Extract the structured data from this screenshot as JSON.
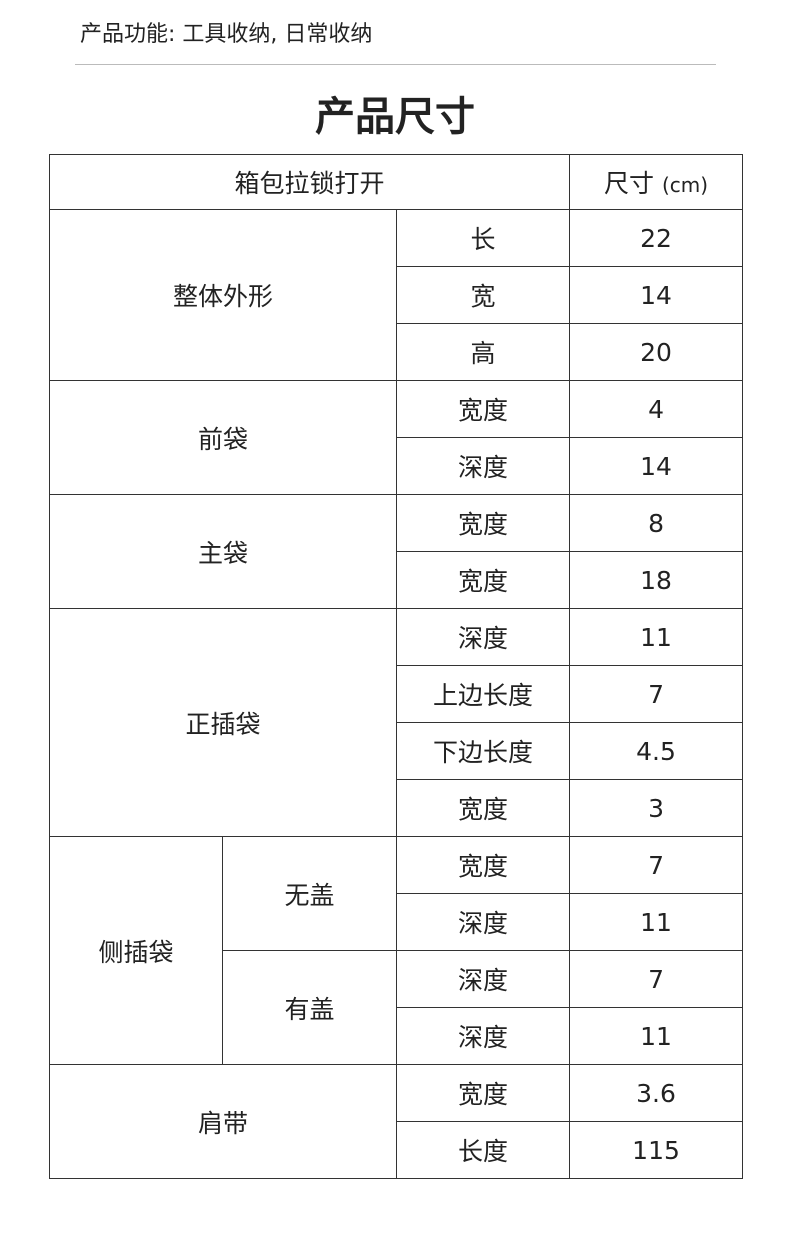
{
  "feature_text": "产品功能: 工具收纳, 日常收纳",
  "title": "产品尺寸",
  "table": {
    "header": {
      "col1": "箱包拉锁打开",
      "col2": "尺寸",
      "unit": "(cm)"
    },
    "groups": [
      {
        "name": "整体外形",
        "rows": [
          {
            "label": "长",
            "value": "22"
          },
          {
            "label": "宽",
            "value": "14"
          },
          {
            "label": "高",
            "value": "20"
          }
        ]
      },
      {
        "name": "前袋",
        "rows": [
          {
            "label": "宽度",
            "value": "4"
          },
          {
            "label": "深度",
            "value": "14"
          }
        ]
      },
      {
        "name": "主袋",
        "rows": [
          {
            "label": "宽度",
            "value": "8"
          },
          {
            "label": "宽度",
            "value": "18"
          }
        ]
      },
      {
        "name": "正插袋",
        "rows": [
          {
            "label": "深度",
            "value": "11"
          },
          {
            "label": "上边长度",
            "value": "7"
          },
          {
            "label": "下边长度",
            "value": "4.5"
          },
          {
            "label": "宽度",
            "value": "3"
          }
        ]
      },
      {
        "name": "侧插袋",
        "subgroups": [
          {
            "name": "无盖",
            "rows": [
              {
                "label": "宽度",
                "value": "7"
              },
              {
                "label": "深度",
                "value": "11"
              }
            ]
          },
          {
            "name": "有盖",
            "rows": [
              {
                "label": "深度",
                "value": "7"
              },
              {
                "label": "深度",
                "value": "11"
              }
            ]
          }
        ]
      },
      {
        "name": "肩带",
        "rows": [
          {
            "label": "宽度",
            "value": "3.6"
          },
          {
            "label": "长度",
            "value": "115"
          }
        ]
      }
    ]
  }
}
